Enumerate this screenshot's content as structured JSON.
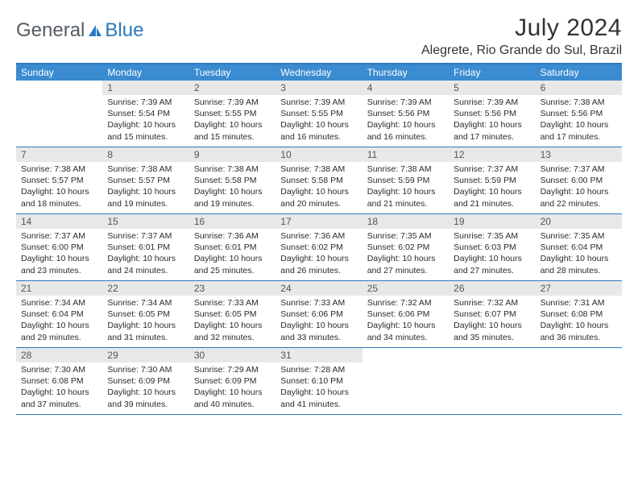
{
  "logo": {
    "text1": "General",
    "text2": "Blue"
  },
  "title": "July 2024",
  "location": "Alegrete, Rio Grande do Sul, Brazil",
  "colors": {
    "header_bg": "#3a8bd0",
    "border": "#2a78bd",
    "daynum_bg": "#e8e8e8",
    "text": "#2b2b2b"
  },
  "weekdays": [
    "Sunday",
    "Monday",
    "Tuesday",
    "Wednesday",
    "Thursday",
    "Friday",
    "Saturday"
  ],
  "weeks": [
    [
      null,
      {
        "n": "1",
        "sunrise": "7:39 AM",
        "sunset": "5:54 PM",
        "daylight": "10 hours and 15 minutes."
      },
      {
        "n": "2",
        "sunrise": "7:39 AM",
        "sunset": "5:55 PM",
        "daylight": "10 hours and 15 minutes."
      },
      {
        "n": "3",
        "sunrise": "7:39 AM",
        "sunset": "5:55 PM",
        "daylight": "10 hours and 16 minutes."
      },
      {
        "n": "4",
        "sunrise": "7:39 AM",
        "sunset": "5:56 PM",
        "daylight": "10 hours and 16 minutes."
      },
      {
        "n": "5",
        "sunrise": "7:39 AM",
        "sunset": "5:56 PM",
        "daylight": "10 hours and 17 minutes."
      },
      {
        "n": "6",
        "sunrise": "7:38 AM",
        "sunset": "5:56 PM",
        "daylight": "10 hours and 17 minutes."
      }
    ],
    [
      {
        "n": "7",
        "sunrise": "7:38 AM",
        "sunset": "5:57 PM",
        "daylight": "10 hours and 18 minutes."
      },
      {
        "n": "8",
        "sunrise": "7:38 AM",
        "sunset": "5:57 PM",
        "daylight": "10 hours and 19 minutes."
      },
      {
        "n": "9",
        "sunrise": "7:38 AM",
        "sunset": "5:58 PM",
        "daylight": "10 hours and 19 minutes."
      },
      {
        "n": "10",
        "sunrise": "7:38 AM",
        "sunset": "5:58 PM",
        "daylight": "10 hours and 20 minutes."
      },
      {
        "n": "11",
        "sunrise": "7:38 AM",
        "sunset": "5:59 PM",
        "daylight": "10 hours and 21 minutes."
      },
      {
        "n": "12",
        "sunrise": "7:37 AM",
        "sunset": "5:59 PM",
        "daylight": "10 hours and 21 minutes."
      },
      {
        "n": "13",
        "sunrise": "7:37 AM",
        "sunset": "6:00 PM",
        "daylight": "10 hours and 22 minutes."
      }
    ],
    [
      {
        "n": "14",
        "sunrise": "7:37 AM",
        "sunset": "6:00 PM",
        "daylight": "10 hours and 23 minutes."
      },
      {
        "n": "15",
        "sunrise": "7:37 AM",
        "sunset": "6:01 PM",
        "daylight": "10 hours and 24 minutes."
      },
      {
        "n": "16",
        "sunrise": "7:36 AM",
        "sunset": "6:01 PM",
        "daylight": "10 hours and 25 minutes."
      },
      {
        "n": "17",
        "sunrise": "7:36 AM",
        "sunset": "6:02 PM",
        "daylight": "10 hours and 26 minutes."
      },
      {
        "n": "18",
        "sunrise": "7:35 AM",
        "sunset": "6:02 PM",
        "daylight": "10 hours and 27 minutes."
      },
      {
        "n": "19",
        "sunrise": "7:35 AM",
        "sunset": "6:03 PM",
        "daylight": "10 hours and 27 minutes."
      },
      {
        "n": "20",
        "sunrise": "7:35 AM",
        "sunset": "6:04 PM",
        "daylight": "10 hours and 28 minutes."
      }
    ],
    [
      {
        "n": "21",
        "sunrise": "7:34 AM",
        "sunset": "6:04 PM",
        "daylight": "10 hours and 29 minutes."
      },
      {
        "n": "22",
        "sunrise": "7:34 AM",
        "sunset": "6:05 PM",
        "daylight": "10 hours and 31 minutes."
      },
      {
        "n": "23",
        "sunrise": "7:33 AM",
        "sunset": "6:05 PM",
        "daylight": "10 hours and 32 minutes."
      },
      {
        "n": "24",
        "sunrise": "7:33 AM",
        "sunset": "6:06 PM",
        "daylight": "10 hours and 33 minutes."
      },
      {
        "n": "25",
        "sunrise": "7:32 AM",
        "sunset": "6:06 PM",
        "daylight": "10 hours and 34 minutes."
      },
      {
        "n": "26",
        "sunrise": "7:32 AM",
        "sunset": "6:07 PM",
        "daylight": "10 hours and 35 minutes."
      },
      {
        "n": "27",
        "sunrise": "7:31 AM",
        "sunset": "6:08 PM",
        "daylight": "10 hours and 36 minutes."
      }
    ],
    [
      {
        "n": "28",
        "sunrise": "7:30 AM",
        "sunset": "6:08 PM",
        "daylight": "10 hours and 37 minutes."
      },
      {
        "n": "29",
        "sunrise": "7:30 AM",
        "sunset": "6:09 PM",
        "daylight": "10 hours and 39 minutes."
      },
      {
        "n": "30",
        "sunrise": "7:29 AM",
        "sunset": "6:09 PM",
        "daylight": "10 hours and 40 minutes."
      },
      {
        "n": "31",
        "sunrise": "7:28 AM",
        "sunset": "6:10 PM",
        "daylight": "10 hours and 41 minutes."
      },
      null,
      null,
      null
    ]
  ],
  "labels": {
    "sunrise": "Sunrise:",
    "sunset": "Sunset:",
    "daylight": "Daylight:"
  }
}
